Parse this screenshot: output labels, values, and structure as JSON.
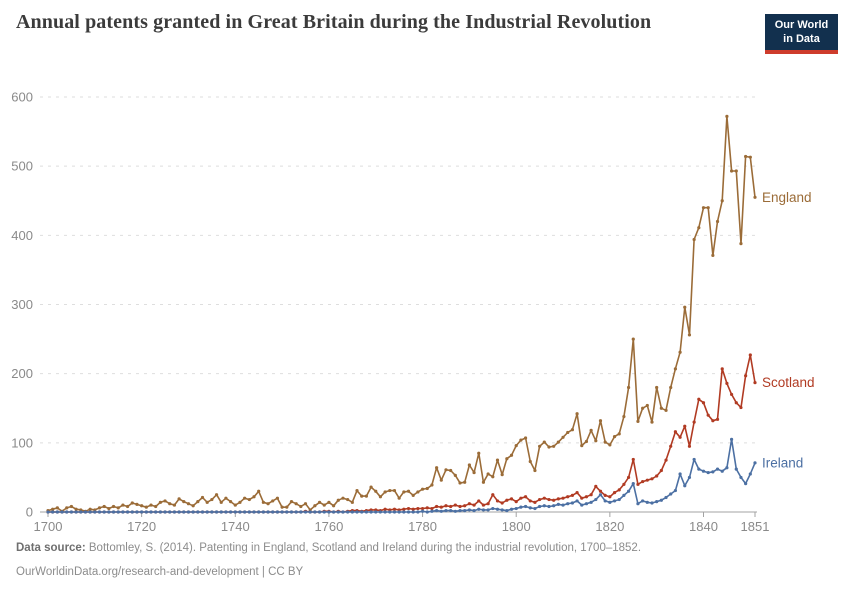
{
  "header": {
    "title": "Annual patents granted in Great Britain during the Industrial Revolution",
    "logo": {
      "line1": "Our World",
      "line2": "in Data"
    }
  },
  "footer": {
    "source_label": "Data source:",
    "source_text": "Bottomley, S. (2014). Patenting in England, Scotland and Ireland during the industrial revolution, 1700–1852.",
    "link": "OurWorldinData.org/research-and-development",
    "separator": " | ",
    "license": "CC BY"
  },
  "colors": {
    "england": "#9B6C38",
    "scotland": "#B13B23",
    "ireland": "#4C70A3",
    "grid": "#dedede",
    "axis": "#a3a3a3",
    "axis_text": "#8a8a8a",
    "logo_bg": "#12304e",
    "logo_accent": "#ce3c2c"
  },
  "chart_data": {
    "type": "line",
    "title": "Annual patents granted in Great Britain during the Industrial Revolution",
    "xlabel": "",
    "ylabel": "",
    "x_start": 1700,
    "x_end": 1851,
    "ylim": [
      0,
      600
    ],
    "yticks": [
      0,
      100,
      200,
      300,
      400,
      500,
      600
    ],
    "xticks": [
      1700,
      1720,
      1740,
      1760,
      1780,
      1800,
      1820,
      1840,
      1851
    ],
    "grid": "dashed-horizontal",
    "markers": true,
    "legend_position": "end-of-line",
    "series": [
      {
        "name": "England",
        "color": "#9B6C38",
        "values": [
          2,
          4,
          6,
          1,
          6,
          8,
          4,
          3,
          1,
          4,
          3,
          6,
          8,
          5,
          8,
          6,
          10,
          8,
          13,
          11,
          9,
          7,
          10,
          8,
          14,
          16,
          12,
          10,
          19,
          15,
          12,
          9,
          15,
          21,
          14,
          18,
          25,
          14,
          20,
          15,
          10,
          14,
          20,
          18,
          22,
          30,
          14,
          12,
          16,
          20,
          7,
          7,
          15,
          12,
          8,
          12,
          3,
          9,
          14,
          10,
          14,
          9,
          17,
          20,
          18,
          14,
          31,
          23,
          23,
          36,
          30,
          22,
          29,
          31,
          31,
          20,
          29,
          30,
          24,
          29,
          33,
          34,
          39,
          64,
          46,
          61,
          60,
          53,
          42,
          43,
          68,
          57,
          85,
          43,
          55,
          51,
          75,
          54,
          77,
          82,
          96,
          104,
          107,
          73,
          60,
          95,
          101,
          94,
          95,
          101,
          108,
          115,
          119,
          142,
          96,
          102,
          118,
          103,
          132,
          101,
          97,
          109,
          113,
          138,
          180,
          250,
          131,
          150,
          154,
          130,
          180,
          150,
          147,
          180,
          207,
          231,
          296,
          256,
          394,
          411,
          440,
          440,
          371,
          420,
          450,
          572,
          493,
          493,
          388,
          514,
          513,
          455
        ]
      },
      {
        "name": "Scotland",
        "color": "#B13B23",
        "values": [
          0,
          0,
          0,
          0,
          0,
          0,
          0,
          0,
          0,
          0,
          0,
          0,
          0,
          0,
          0,
          0,
          0,
          0,
          0,
          0,
          0,
          0,
          0,
          0,
          0,
          0,
          0,
          0,
          0,
          0,
          0,
          0,
          0,
          0,
          0,
          0,
          0,
          0,
          0,
          0,
          0,
          0,
          0,
          0,
          0,
          0,
          0,
          0,
          0,
          0,
          0,
          0,
          0,
          0,
          0,
          1,
          0,
          0,
          0,
          1,
          1,
          0,
          1,
          0,
          1,
          2,
          2,
          1,
          2,
          3,
          3,
          2,
          4,
          3,
          4,
          3,
          4,
          5,
          4,
          5,
          5,
          6,
          5,
          8,
          7,
          9,
          8,
          10,
          8,
          9,
          12,
          10,
          16,
          10,
          12,
          25,
          16,
          13,
          17,
          19,
          15,
          20,
          22,
          16,
          14,
          18,
          20,
          18,
          17,
          19,
          20,
          22,
          24,
          28,
          20,
          22,
          25,
          37,
          30,
          24,
          22,
          28,
          32,
          40,
          50,
          76,
          40,
          44,
          46,
          48,
          52,
          60,
          75,
          95,
          116,
          108,
          124,
          95,
          130,
          163,
          158,
          140,
          132,
          134,
          207,
          186,
          170,
          158,
          151,
          197,
          227,
          187
        ]
      },
      {
        "name": "Ireland",
        "color": "#4C70A3",
        "values": [
          0,
          0,
          0,
          0,
          0,
          0,
          0,
          0,
          0,
          0,
          0,
          0,
          0,
          0,
          0,
          0,
          0,
          0,
          0,
          0,
          0,
          0,
          0,
          0,
          0,
          0,
          0,
          0,
          0,
          0,
          0,
          0,
          0,
          0,
          0,
          0,
          0,
          0,
          0,
          0,
          0,
          0,
          0,
          0,
          0,
          0,
          0,
          0,
          0,
          0,
          0,
          0,
          0,
          0,
          0,
          0,
          0,
          0,
          0,
          0,
          0,
          0,
          0,
          0,
          0,
          0,
          0,
          0,
          0,
          0,
          0,
          0,
          0,
          0,
          0,
          0,
          0,
          0,
          0,
          0,
          1,
          0,
          1,
          2,
          1,
          2,
          2,
          1,
          2,
          2,
          3,
          2,
          4,
          3,
          3,
          5,
          4,
          3,
          2,
          4,
          5,
          7,
          8,
          6,
          5,
          8,
          9,
          8,
          9,
          11,
          10,
          12,
          13,
          16,
          10,
          12,
          14,
          18,
          25,
          16,
          14,
          16,
          18,
          24,
          30,
          41,
          12,
          16,
          14,
          13,
          15,
          17,
          21,
          26,
          31,
          55,
          38,
          50,
          76,
          62,
          59,
          57,
          58,
          62,
          59,
          64,
          105,
          62,
          50,
          41,
          55,
          71
        ]
      }
    ]
  }
}
